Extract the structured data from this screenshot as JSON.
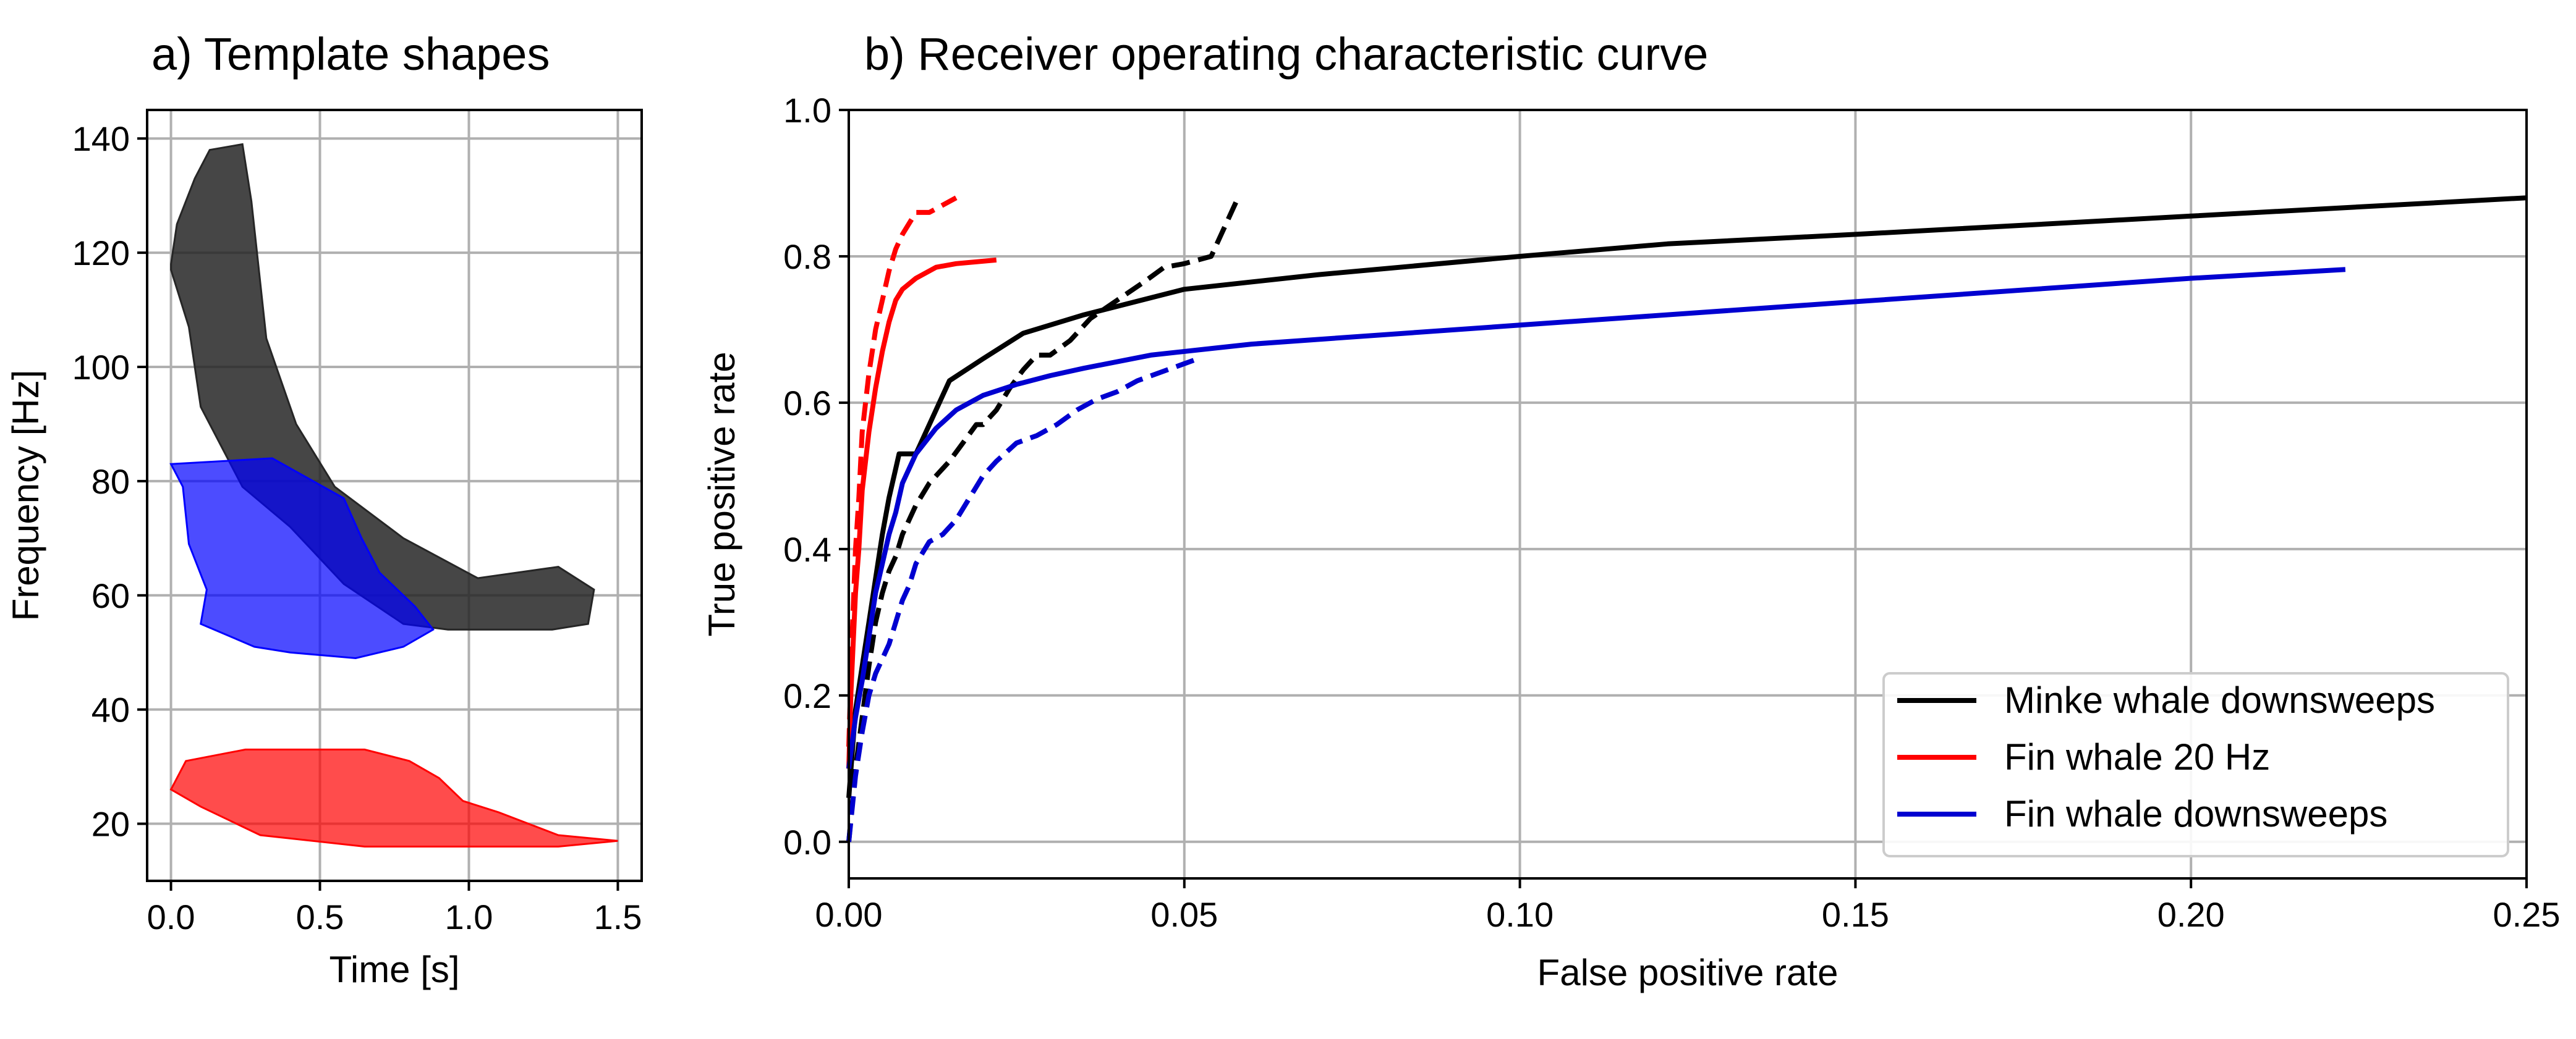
{
  "chart_data": [
    {
      "type": "area",
      "title": "a) Template shapes",
      "xlabel": "Time [s]",
      "ylabel": "Frequency [Hz]",
      "xlim": [
        -0.08,
        1.58
      ],
      "ylim": [
        10,
        145
      ],
      "xticks": [
        "0.0",
        "0.5",
        "1.0",
        "1.5"
      ],
      "xtick_values": [
        0.0,
        0.5,
        1.0,
        1.5
      ],
      "yticks": [
        "20",
        "40",
        "60",
        "80",
        "100",
        "120",
        "140"
      ],
      "ytick_values": [
        20,
        40,
        60,
        80,
        100,
        120,
        140
      ],
      "grid": true,
      "series": [
        {
          "color": "#262626",
          "opacity": 0.85,
          "polygon": [
            [
              0.0,
              118
            ],
            [
              0.02,
              125
            ],
            [
              0.08,
              133
            ],
            [
              0.13,
              138
            ],
            [
              0.24,
              139
            ],
            [
              0.27,
              129
            ],
            [
              0.32,
              105
            ],
            [
              0.42,
              90
            ],
            [
              0.55,
              79
            ],
            [
              0.78,
              70
            ],
            [
              1.03,
              63
            ],
            [
              1.3,
              65
            ],
            [
              1.42,
              61
            ],
            [
              1.4,
              55
            ],
            [
              1.28,
              54
            ],
            [
              1.0,
              54
            ],
            [
              0.93,
              54
            ],
            [
              0.78,
              55
            ],
            [
              0.58,
              62
            ],
            [
              0.4,
              72
            ],
            [
              0.24,
              79
            ],
            [
              0.1,
              93
            ],
            [
              0.06,
              107
            ],
            [
              0.0,
              117
            ]
          ]
        },
        {
          "color": "#0000ff",
          "opacity": 0.7,
          "polygon": [
            [
              0.0,
              83
            ],
            [
              0.34,
              84
            ],
            [
              0.58,
              77
            ],
            [
              0.64,
              70
            ],
            [
              0.7,
              64
            ],
            [
              0.82,
              58
            ],
            [
              0.88,
              54
            ],
            [
              0.78,
              51
            ],
            [
              0.62,
              49
            ],
            [
              0.4,
              50
            ],
            [
              0.28,
              51
            ],
            [
              0.1,
              55
            ],
            [
              0.12,
              61
            ],
            [
              0.06,
              69
            ],
            [
              0.04,
              79
            ],
            [
              0.0,
              83
            ]
          ]
        },
        {
          "color": "#ff0000",
          "opacity": 0.7,
          "polygon": [
            [
              0.0,
              26
            ],
            [
              0.05,
              31
            ],
            [
              0.25,
              33
            ],
            [
              0.65,
              33
            ],
            [
              0.8,
              31
            ],
            [
              0.9,
              28
            ],
            [
              0.98,
              24
            ],
            [
              1.1,
              22
            ],
            [
              1.3,
              18
            ],
            [
              1.5,
              17
            ],
            [
              1.3,
              16
            ],
            [
              0.65,
              16
            ],
            [
              0.3,
              18
            ],
            [
              0.1,
              23
            ],
            [
              0.0,
              26
            ]
          ]
        }
      ]
    },
    {
      "type": "line",
      "title": "b) Receiver operating characteristic curve",
      "xlabel": "False positive rate",
      "ylabel": "True positive rate",
      "xlim": [
        0.0,
        0.25
      ],
      "ylim": [
        -0.05,
        1.0
      ],
      "xticks": [
        "0.00",
        "0.05",
        "0.10",
        "0.15",
        "0.20",
        "0.25"
      ],
      "xtick_values": [
        0.0,
        0.05,
        0.1,
        0.15,
        0.2,
        0.25
      ],
      "yticks": [
        "0.0",
        "0.2",
        "0.4",
        "0.6",
        "0.8",
        "1.0"
      ],
      "ytick_values": [
        0.0,
        0.2,
        0.4,
        0.6,
        0.8,
        1.0
      ],
      "grid": true,
      "legend_position": "lower-right",
      "series": [
        {
          "name": "Minke whale downsweeps",
          "color": "#000000",
          "dash": "solid",
          "x": [
            0.0,
            0.0005,
            0.001,
            0.002,
            0.003,
            0.004,
            0.005,
            0.006,
            0.007,
            0.0075,
            0.009,
            0.01,
            0.012,
            0.015,
            0.02,
            0.026,
            0.035,
            0.05,
            0.07,
            0.1,
            0.122,
            0.15,
            0.2,
            0.25
          ],
          "y": [
            0.06,
            0.12,
            0.18,
            0.24,
            0.3,
            0.36,
            0.42,
            0.47,
            0.51,
            0.53,
            0.53,
            0.53,
            0.57,
            0.63,
            0.66,
            0.695,
            0.72,
            0.755,
            0.775,
            0.8,
            0.817,
            0.83,
            0.855,
            0.88
          ]
        },
        {
          "name": "",
          "color": "#000000",
          "dash": "dashed",
          "x": [
            0.0,
            0.001,
            0.002,
            0.003,
            0.004,
            0.005,
            0.006,
            0.007,
            0.008,
            0.009,
            0.01,
            0.012,
            0.014,
            0.015,
            0.017,
            0.019,
            0.02,
            0.022,
            0.024,
            0.026,
            0.028,
            0.03,
            0.033,
            0.036,
            0.04,
            0.044,
            0.047,
            0.05,
            0.054,
            0.058
          ],
          "y": [
            0.0,
            0.1,
            0.17,
            0.24,
            0.3,
            0.34,
            0.37,
            0.39,
            0.42,
            0.44,
            0.46,
            0.49,
            0.51,
            0.52,
            0.545,
            0.57,
            0.57,
            0.59,
            0.62,
            0.645,
            0.665,
            0.665,
            0.685,
            0.715,
            0.74,
            0.765,
            0.785,
            0.79,
            0.8,
            0.88
          ]
        },
        {
          "name": "Fin whale 20 Hz",
          "color": "#ff0000",
          "dash": "solid",
          "x": [
            0.0,
            0.0003,
            0.0006,
            0.001,
            0.0015,
            0.002,
            0.003,
            0.004,
            0.005,
            0.006,
            0.007,
            0.008,
            0.01,
            0.013,
            0.016,
            0.022
          ],
          "y": [
            0.1,
            0.2,
            0.26,
            0.34,
            0.4,
            0.48,
            0.56,
            0.62,
            0.67,
            0.71,
            0.74,
            0.755,
            0.77,
            0.785,
            0.79,
            0.795
          ]
        },
        {
          "name": "",
          "color": "#ff0000",
          "dash": "dashed",
          "x": [
            0.0,
            0.0005,
            0.001,
            0.0015,
            0.002,
            0.003,
            0.004,
            0.005,
            0.006,
            0.007,
            0.008,
            0.009,
            0.01,
            0.012,
            0.014,
            0.016
          ],
          "y": [
            0.13,
            0.28,
            0.4,
            0.47,
            0.56,
            0.64,
            0.7,
            0.74,
            0.78,
            0.81,
            0.83,
            0.845,
            0.86,
            0.86,
            0.87,
            0.88
          ]
        },
        {
          "name": "Fin whale downsweeps",
          "color": "#0000d0",
          "dash": "solid",
          "x": [
            0.0,
            0.001,
            0.002,
            0.003,
            0.004,
            0.005,
            0.006,
            0.007,
            0.008,
            0.01,
            0.013,
            0.016,
            0.02,
            0.025,
            0.03,
            0.035,
            0.045,
            0.055,
            0.06,
            0.1,
            0.15,
            0.2,
            0.223
          ],
          "y": [
            0.1,
            0.17,
            0.22,
            0.28,
            0.34,
            0.38,
            0.42,
            0.45,
            0.49,
            0.53,
            0.565,
            0.59,
            0.61,
            0.625,
            0.637,
            0.647,
            0.665,
            0.675,
            0.68,
            0.706,
            0.738,
            0.77,
            0.782
          ]
        },
        {
          "name": "",
          "color": "#0000d0",
          "dash": "dashed",
          "x": [
            0.0,
            0.001,
            0.002,
            0.003,
            0.004,
            0.005,
            0.006,
            0.007,
            0.008,
            0.009,
            0.01,
            0.012,
            0.014,
            0.016,
            0.018,
            0.02,
            0.022,
            0.025,
            0.028,
            0.031,
            0.034,
            0.037,
            0.04,
            0.043,
            0.046,
            0.049,
            0.052
          ],
          "y": [
            0.0,
            0.09,
            0.15,
            0.2,
            0.23,
            0.25,
            0.27,
            0.3,
            0.33,
            0.35,
            0.38,
            0.41,
            0.42,
            0.44,
            0.47,
            0.5,
            0.52,
            0.545,
            0.555,
            0.57,
            0.59,
            0.605,
            0.615,
            0.63,
            0.64,
            0.65,
            0.66
          ]
        }
      ]
    }
  ]
}
